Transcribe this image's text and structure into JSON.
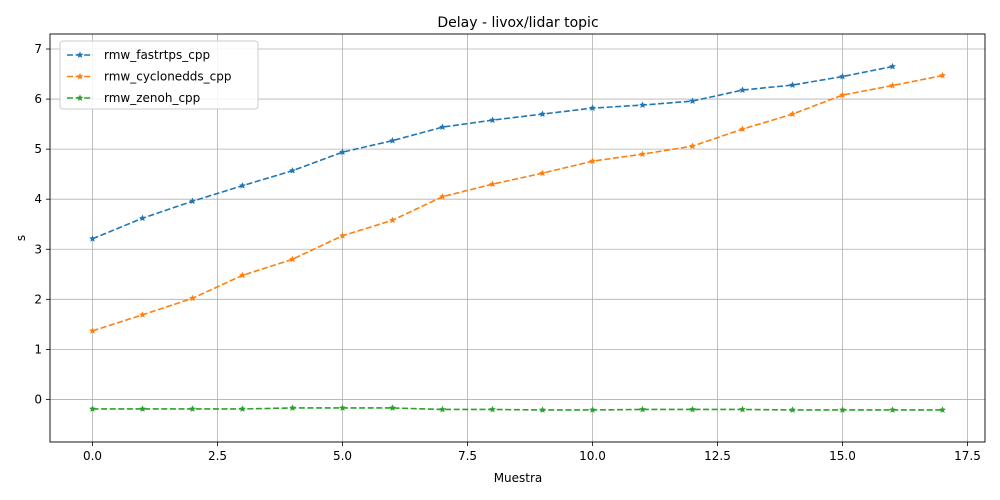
{
  "chart_data": {
    "type": "line",
    "title": "Delay - livox/lidar topic",
    "xlabel": "Muestra",
    "ylabel": "s",
    "xlim": [
      -0.85,
      17.85
    ],
    "ylim": [
      -0.85,
      7.3
    ],
    "xticks": [
      0.0,
      2.5,
      5.0,
      7.5,
      10.0,
      12.5,
      15.0,
      17.5
    ],
    "xtick_labels": [
      "0.0",
      "2.5",
      "5.0",
      "7.5",
      "10.0",
      "12.5",
      "15.0",
      "17.5"
    ],
    "yticks": [
      0,
      1,
      2,
      3,
      4,
      5,
      6,
      7
    ],
    "ytick_labels": [
      "0",
      "1",
      "2",
      "3",
      "4",
      "5",
      "6",
      "7"
    ],
    "grid": true,
    "legend_position": "top-left",
    "series": [
      {
        "name": "rmw_fastrtps_cpp",
        "color": "#1f77b4",
        "x": [
          0,
          1,
          2,
          3,
          4,
          5,
          6,
          7,
          8,
          9,
          10,
          11,
          12,
          13,
          14,
          15,
          16
        ],
        "values": [
          3.21,
          3.62,
          3.96,
          4.27,
          4.57,
          4.94,
          5.17,
          5.44,
          5.58,
          5.7,
          5.82,
          5.88,
          5.96,
          6.18,
          6.28,
          6.45,
          6.65
        ]
      },
      {
        "name": "rmw_cyclonedds_cpp",
        "color": "#ff7f0e",
        "x": [
          0,
          1,
          2,
          3,
          4,
          5,
          6,
          7,
          8,
          9,
          10,
          11,
          12,
          13,
          14,
          15,
          16,
          17
        ],
        "values": [
          1.37,
          1.69,
          2.02,
          2.48,
          2.8,
          3.27,
          3.58,
          4.05,
          4.3,
          4.52,
          4.76,
          4.9,
          5.06,
          5.4,
          5.7,
          6.08,
          6.27,
          6.47
        ]
      },
      {
        "name": "rmw_zenoh_cpp",
        "color": "#2ca02c",
        "x": [
          0,
          1,
          2,
          3,
          4,
          5,
          6,
          7,
          8,
          9,
          10,
          11,
          12,
          13,
          14,
          15,
          16,
          17
        ],
        "values": [
          -0.19,
          -0.19,
          -0.19,
          -0.19,
          -0.17,
          -0.17,
          -0.17,
          -0.2,
          -0.2,
          -0.21,
          -0.21,
          -0.2,
          -0.2,
          -0.2,
          -0.21,
          -0.21,
          -0.21,
          -0.21
        ]
      }
    ]
  }
}
